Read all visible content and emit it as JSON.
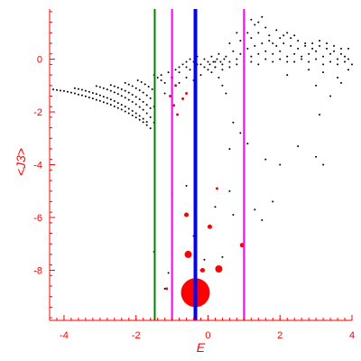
{
  "chart_data": {
    "type": "scatter",
    "xlabel": "E",
    "ylabel": "<J3>",
    "xlim": [
      -4.4,
      4.0
    ],
    "ylim": [
      -9.9,
      1.9
    ],
    "x_ticks": [
      -4,
      -2,
      0,
      2,
      4
    ],
    "x_tick_labels": [
      "-4",
      "-2",
      "0",
      "2",
      "4"
    ],
    "y_ticks": [
      0,
      -2,
      -4,
      -6,
      -8
    ],
    "y_tick_labels": [
      "0",
      "-2",
      "-4",
      "-6",
      "-8"
    ],
    "axis_color": "#ff0000",
    "vertical_lines": [
      {
        "x": -1.48,
        "color": "#008000",
        "width": 2
      },
      {
        "x": -1.0,
        "color": "#ff00ff",
        "width": 2
      },
      {
        "x": -0.35,
        "color": "#0000ff",
        "width": 4
      },
      {
        "x": 1.0,
        "color": "#ff00ff",
        "width": 2
      }
    ],
    "series": [
      {
        "color": "#000000",
        "marker_size": 1,
        "points": [
          [
            -4.3,
            -1.15
          ],
          [
            -4.2,
            -1.17
          ],
          [
            -4.1,
            -1.19
          ],
          [
            -4.0,
            -1.21
          ],
          [
            -3.9,
            -1.24
          ],
          [
            -3.8,
            -1.27
          ],
          [
            -3.7,
            -1.3
          ],
          [
            -3.6,
            -1.34
          ],
          [
            -3.5,
            -1.37
          ],
          [
            -3.4,
            -1.41
          ],
          [
            -3.3,
            -1.45
          ],
          [
            -3.2,
            -1.49
          ],
          [
            -3.1,
            -1.54
          ],
          [
            -3.0,
            -1.58
          ],
          [
            -2.9,
            -1.63
          ],
          [
            -2.8,
            -1.68
          ],
          [
            -2.7,
            -1.73
          ],
          [
            -2.6,
            -1.79
          ],
          [
            -2.5,
            -1.85
          ],
          [
            -2.4,
            -1.91
          ],
          [
            -2.3,
            -1.98
          ],
          [
            -2.2,
            -2.05
          ],
          [
            -2.1,
            -2.13
          ],
          [
            -2.0,
            -2.21
          ],
          [
            -1.9,
            -2.3
          ],
          [
            -1.8,
            -2.39
          ],
          [
            -1.7,
            -2.5
          ],
          [
            -1.6,
            -2.62
          ],
          [
            -3.7,
            -1.1
          ],
          [
            -3.6,
            -1.13
          ],
          [
            -3.5,
            -1.16
          ],
          [
            -3.4,
            -1.2
          ],
          [
            -3.3,
            -1.24
          ],
          [
            -3.2,
            -1.28
          ],
          [
            -3.1,
            -1.32
          ],
          [
            -3.0,
            -1.37
          ],
          [
            -2.9,
            -1.42
          ],
          [
            -2.8,
            -1.47
          ],
          [
            -2.7,
            -1.53
          ],
          [
            -2.6,
            -1.59
          ],
          [
            -2.5,
            -1.66
          ],
          [
            -2.4,
            -1.73
          ],
          [
            -2.3,
            -1.8
          ],
          [
            -2.2,
            -1.88
          ],
          [
            -2.1,
            -1.96
          ],
          [
            -2.0,
            -2.05
          ],
          [
            -1.9,
            -2.15
          ],
          [
            -1.8,
            -2.26
          ],
          [
            -1.7,
            -2.38
          ],
          [
            -3.1,
            -1.02
          ],
          [
            -3.0,
            -1.06
          ],
          [
            -2.9,
            -1.1
          ],
          [
            -2.8,
            -1.15
          ],
          [
            -2.7,
            -1.2
          ],
          [
            -2.6,
            -1.26
          ],
          [
            -2.5,
            -1.32
          ],
          [
            -2.4,
            -1.39
          ],
          [
            -2.3,
            -1.46
          ],
          [
            -2.2,
            -1.54
          ],
          [
            -2.1,
            -1.62
          ],
          [
            -2.0,
            -1.71
          ],
          [
            -1.9,
            -1.81
          ],
          [
            -1.8,
            -1.92
          ],
          [
            -1.7,
            -2.05
          ],
          [
            -2.7,
            -0.98
          ],
          [
            -2.6,
            -1.03
          ],
          [
            -2.5,
            -1.08
          ],
          [
            -2.4,
            -1.14
          ],
          [
            -2.3,
            -1.2
          ],
          [
            -2.2,
            -1.27
          ],
          [
            -2.1,
            -1.35
          ],
          [
            -2.0,
            -1.43
          ],
          [
            -1.9,
            -1.52
          ],
          [
            -1.8,
            -1.62
          ],
          [
            -1.7,
            -1.73
          ],
          [
            -1.6,
            -1.86
          ],
          [
            -2.3,
            -0.9
          ],
          [
            -2.2,
            -0.96
          ],
          [
            -2.1,
            -1.02
          ],
          [
            -2.0,
            -1.1
          ],
          [
            -1.9,
            -1.18
          ],
          [
            -1.8,
            -1.27
          ],
          [
            -1.7,
            -1.37
          ],
          [
            -1.6,
            -1.48
          ],
          [
            -1.95,
            -0.8
          ],
          [
            -1.85,
            -0.87
          ],
          [
            -1.75,
            -0.95
          ],
          [
            -1.65,
            -1.04
          ],
          [
            -1.55,
            -1.14
          ],
          [
            -1.5,
            -0.6
          ],
          [
            -1.4,
            -0.7
          ],
          [
            -1.3,
            -0.8
          ],
          [
            -1.2,
            -0.9
          ],
          [
            -1.3,
            -0.6
          ],
          [
            -1.1,
            -0.5
          ],
          [
            -0.9,
            -0.4
          ],
          [
            -0.8,
            -0.3
          ],
          [
            -0.7,
            -0.2
          ],
          [
            -0.6,
            -0.1
          ],
          [
            -0.5,
            0.0
          ],
          [
            -0.4,
            -0.1
          ],
          [
            -0.3,
            0.1
          ],
          [
            -0.2,
            -0.2
          ],
          [
            -0.1,
            0.0
          ],
          [
            -1.2,
            -1.3
          ],
          [
            -1.0,
            -1.1
          ],
          [
            -0.8,
            -0.9
          ],
          [
            -0.6,
            -0.7
          ],
          [
            -0.4,
            -0.8
          ],
          [
            -0.2,
            -0.6
          ],
          [
            0.0,
            -0.4
          ],
          [
            0.1,
            -0.5
          ],
          [
            0.2,
            -0.3
          ],
          [
            0.3,
            -0.7
          ],
          [
            0.4,
            -1.0
          ],
          [
            0.5,
            -1.3
          ],
          [
            -1.5,
            -1.8
          ],
          [
            -1.6,
            -2.2
          ],
          [
            -1.5,
            -2.4
          ],
          [
            0.0,
            -0.1
          ],
          [
            0.1,
            0.1
          ],
          [
            0.2,
            -0.1
          ],
          [
            0.3,
            0.2
          ],
          [
            0.4,
            -0.2
          ],
          [
            0.5,
            0.1
          ],
          [
            0.6,
            -0.1
          ],
          [
            0.7,
            0.3
          ],
          [
            0.8,
            0.0
          ],
          [
            0.9,
            0.2
          ],
          [
            1.0,
            -0.1
          ],
          [
            1.1,
            0.4
          ],
          [
            1.2,
            0.1
          ],
          [
            1.3,
            0.5
          ],
          [
            1.4,
            0.2
          ],
          [
            1.5,
            0.6
          ],
          [
            1.6,
            0.3
          ],
          [
            1.7,
            0.7
          ],
          [
            1.8,
            0.2
          ],
          [
            1.9,
            0.5
          ],
          [
            2.0,
            0.3
          ],
          [
            2.1,
            0.6
          ],
          [
            2.2,
            0.1
          ],
          [
            2.3,
            0.5
          ],
          [
            2.4,
            0.2
          ],
          [
            2.5,
            0.4
          ],
          [
            2.6,
            0.1
          ],
          [
            2.7,
            0.5
          ],
          [
            2.8,
            0.2
          ],
          [
            2.9,
            0.4
          ],
          [
            3.0,
            0.3
          ],
          [
            3.1,
            0.5
          ],
          [
            3.2,
            0.1
          ],
          [
            3.3,
            0.4
          ],
          [
            3.4,
            0.2
          ],
          [
            3.5,
            0.3
          ],
          [
            3.6,
            0.0
          ],
          [
            3.7,
            0.2
          ],
          [
            3.8,
            0.1
          ],
          [
            3.9,
            0.0
          ],
          [
            0.2,
            -0.3
          ],
          [
            0.4,
            -0.4
          ],
          [
            0.6,
            -0.3
          ],
          [
            0.8,
            -0.2
          ],
          [
            1.0,
            -0.3
          ],
          [
            1.2,
            -0.1
          ],
          [
            1.4,
            -0.2
          ],
          [
            1.6,
            0.0
          ],
          [
            1.8,
            -0.1
          ],
          [
            2.0,
            0.0
          ],
          [
            2.2,
            -0.1
          ],
          [
            2.4,
            -0.1
          ],
          [
            2.6,
            0.0
          ],
          [
            2.8,
            -0.1
          ],
          [
            3.0,
            0.0
          ],
          [
            3.2,
            -0.2
          ],
          [
            3.4,
            -0.1
          ],
          [
            3.6,
            -0.2
          ],
          [
            3.8,
            -0.1
          ],
          [
            4.0,
            -0.2
          ],
          [
            1.2,
            0.8
          ],
          [
            1.4,
            1.0
          ],
          [
            1.6,
            1.2
          ],
          [
            1.5,
            1.6
          ],
          [
            1.3,
            1.3
          ],
          [
            1.1,
            1.0
          ],
          [
            0.9,
            0.7
          ],
          [
            1.7,
            0.9
          ],
          [
            1.9,
            1.1
          ],
          [
            2.1,
            0.9
          ],
          [
            2.3,
            0.8
          ],
          [
            2.5,
            0.7
          ],
          [
            2.7,
            0.6
          ],
          [
            2.9,
            0.6
          ],
          [
            3.1,
            0.7
          ],
          [
            3.3,
            0.6
          ],
          [
            3.5,
            0.5
          ],
          [
            3.7,
            0.4
          ],
          [
            3.9,
            0.4
          ],
          [
            1.0,
            1.2
          ],
          [
            1.2,
            1.5
          ],
          [
            0.8,
            1.0
          ],
          [
            0.6,
            0.6
          ],
          [
            1.4,
            1.4
          ],
          [
            1.8,
            0.6
          ],
          [
            2.0,
            0.8
          ],
          [
            2.2,
            1.0
          ],
          [
            2.4,
            0.9
          ],
          [
            -0.8,
            -0.5
          ],
          [
            -0.6,
            -0.3
          ],
          [
            -0.5,
            -0.4
          ],
          [
            -0.3,
            -0.2
          ],
          [
            -0.1,
            -0.3
          ],
          [
            0.05,
            -0.2
          ],
          [
            0.15,
            -0.1
          ],
          [
            0.25,
            0.0
          ],
          [
            0.35,
            -0.1
          ],
          [
            0.45,
            0.0
          ],
          [
            2.2,
            -0.6
          ],
          [
            2.8,
            -0.4
          ],
          [
            3.2,
            -0.5
          ],
          [
            3.6,
            -0.7
          ],
          [
            3.9,
            -0.4
          ],
          [
            3.0,
            -1.0
          ],
          [
            3.4,
            -1.4
          ],
          [
            3.1,
            -2.1
          ],
          [
            3.7,
            -0.9
          ],
          [
            0.7,
            -2.4
          ],
          [
            0.9,
            -2.8
          ],
          [
            0.6,
            -3.4
          ],
          [
            1.1,
            -3.2
          ],
          [
            1.6,
            -3.8
          ],
          [
            2.0,
            -4.0
          ],
          [
            2.5,
            -3.3
          ],
          [
            3.0,
            -3.7
          ],
          [
            3.2,
            -4.0
          ],
          [
            1.8,
            -5.4
          ],
          [
            0.6,
            -5.0
          ],
          [
            -0.6,
            -4.8
          ],
          [
            -1.0,
            -5.1
          ],
          [
            0.2,
            -5.6
          ],
          [
            0.7,
            -5.9
          ],
          [
            -0.4,
            -6.7
          ],
          [
            -1.5,
            -7.3
          ],
          [
            -1.0,
            -7.4
          ],
          [
            1.3,
            -5.7
          ],
          [
            1.5,
            -6.1
          ],
          [
            0.4,
            -7.5
          ],
          [
            -0.2,
            -8.0
          ],
          [
            -0.1,
            -7.6
          ],
          [
            -1.2,
            -8.7
          ],
          [
            -1.1,
            -8.1
          ]
        ]
      },
      {
        "color": "#ff0000",
        "marker_size": 1.5,
        "points": [
          [
            -1.0,
            -0.7
          ],
          [
            -0.9,
            -1.0
          ],
          [
            -1.05,
            -1.4
          ],
          [
            -0.95,
            -1.75
          ],
          [
            -0.85,
            -2.1
          ],
          [
            -0.7,
            -1.5
          ],
          [
            -0.6,
            -1.3
          ],
          [
            0.25,
            -4.9
          ],
          [
            -1.15,
            -8.7
          ]
        ]
      },
      {
        "color": "#ff0000",
        "marker_size": 2.5,
        "points": [
          [
            -0.6,
            -5.9
          ],
          [
            0.05,
            -6.35
          ],
          [
            0.95,
            -7.05
          ],
          [
            -0.15,
            -8.0
          ]
        ]
      },
      {
        "color": "#ff0000",
        "marker_size": 4,
        "points": [
          [
            -0.55,
            -7.4
          ],
          [
            0.3,
            -7.95
          ]
        ]
      },
      {
        "color": "#ff0000",
        "marker_size": 16,
        "points": [
          [
            -0.35,
            -8.85
          ]
        ]
      }
    ]
  }
}
